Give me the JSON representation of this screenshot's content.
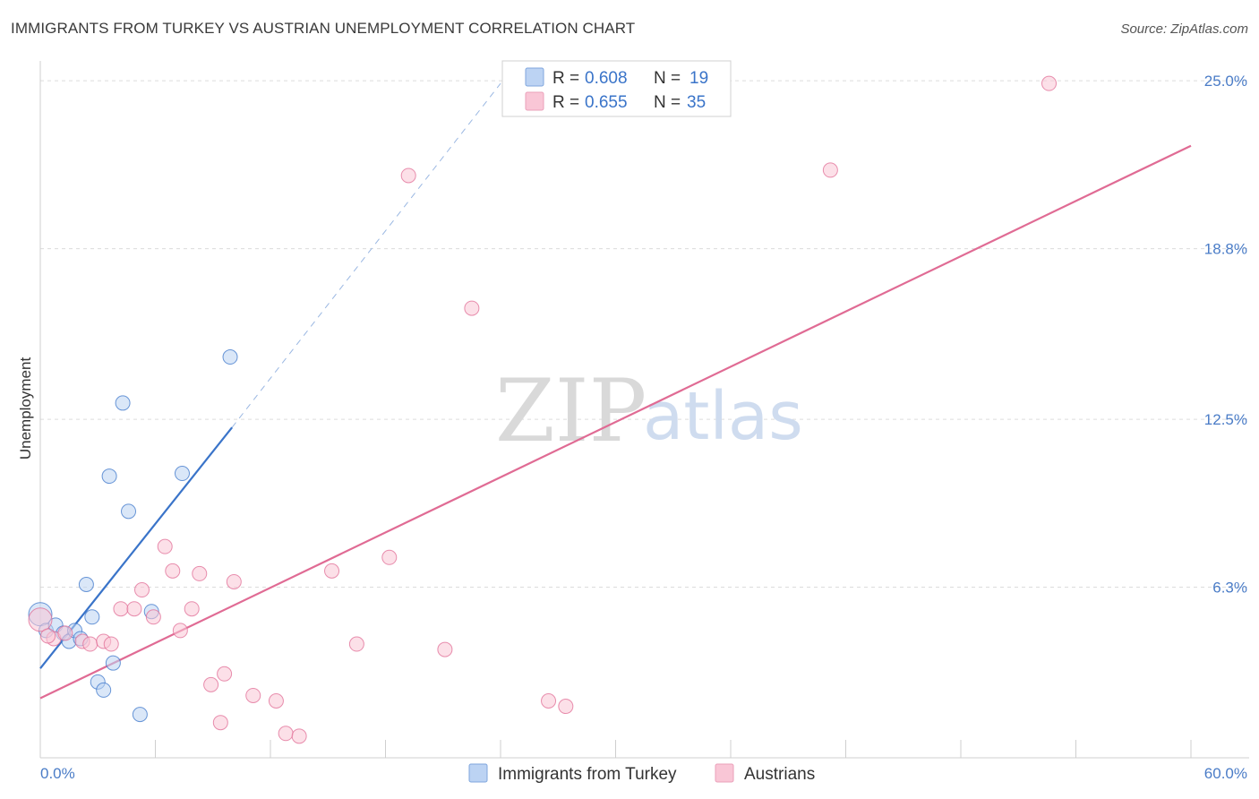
{
  "title": "IMMIGRANTS FROM TURKEY VS AUSTRIAN UNEMPLOYMENT CORRELATION CHART",
  "source": "Source: ZipAtlas.com",
  "watermark": {
    "zip": "ZIP",
    "atlas": "atlas"
  },
  "colors": {
    "blue": "#3a74c9",
    "blue_fill": "#bcd3f3",
    "pink": "#e06b94",
    "pink_fill": "#f9c6d6",
    "grid": "#dcdcdc",
    "tick_text": "#4a7cc7"
  },
  "legend": {
    "r_label": "R =",
    "n_label": "N =",
    "entries": [
      {
        "r": "0.608",
        "n": "19",
        "color": "blue"
      },
      {
        "r": "0.655",
        "n": "35",
        "color": "pink"
      }
    ]
  },
  "chart_data": {
    "type": "scatter",
    "title": "IMMIGRANTS FROM TURKEY VS AUSTRIAN UNEMPLOYMENT CORRELATION CHART",
    "xlabel": "",
    "ylabel": "Unemployment",
    "xlim": [
      0,
      60
    ],
    "ylim": [
      0,
      25.6
    ],
    "x_tick_labels": [
      "0.0%",
      "60.0%"
    ],
    "y_ticks": [
      {
        "value": 6.3,
        "label": "6.3%"
      },
      {
        "value": 12.5,
        "label": "12.5%"
      },
      {
        "value": 18.8,
        "label": "18.8%"
      },
      {
        "value": 25.0,
        "label": "25.0%"
      }
    ],
    "grid": true,
    "legend_position": "top-center",
    "series": [
      {
        "name": "Immigrants from Turkey",
        "color": "blue",
        "R": 0.608,
        "N": 19,
        "points": [
          [
            0.0,
            5.3
          ],
          [
            0.3,
            4.7
          ],
          [
            0.8,
            4.9
          ],
          [
            1.2,
            4.6
          ],
          [
            1.5,
            4.3
          ],
          [
            1.8,
            4.7
          ],
          [
            2.1,
            4.4
          ],
          [
            2.4,
            6.4
          ],
          [
            2.7,
            5.2
          ],
          [
            3.0,
            2.8
          ],
          [
            3.3,
            2.5
          ],
          [
            3.6,
            10.4
          ],
          [
            3.8,
            3.5
          ],
          [
            4.3,
            13.1
          ],
          [
            4.6,
            9.1
          ],
          [
            5.2,
            1.6
          ],
          [
            5.8,
            5.4
          ],
          [
            7.4,
            10.5
          ],
          [
            9.9,
            14.8
          ]
        ],
        "trend": {
          "x0": 0.0,
          "y0": 3.3,
          "x1": 10.0,
          "y1": 12.2
        },
        "trend_dashed": {
          "x0": 10.0,
          "y0": 12.2,
          "x1": 24.0,
          "y1": 24.9
        }
      },
      {
        "name": "Austrians",
        "color": "pink",
        "R": 0.655,
        "N": 35,
        "points": [
          [
            0.0,
            5.1
          ],
          [
            0.7,
            4.4
          ],
          [
            1.3,
            4.6
          ],
          [
            2.2,
            4.3
          ],
          [
            2.6,
            4.2
          ],
          [
            3.3,
            4.3
          ],
          [
            3.7,
            4.2
          ],
          [
            4.2,
            5.5
          ],
          [
            4.9,
            5.5
          ],
          [
            5.3,
            6.2
          ],
          [
            5.9,
            5.2
          ],
          [
            6.5,
            7.8
          ],
          [
            6.9,
            6.9
          ],
          [
            7.3,
            4.7
          ],
          [
            7.9,
            5.5
          ],
          [
            8.3,
            6.8
          ],
          [
            8.9,
            2.7
          ],
          [
            9.4,
            1.3
          ],
          [
            9.6,
            3.1
          ],
          [
            10.1,
            6.5
          ],
          [
            11.1,
            2.3
          ],
          [
            12.3,
            2.1
          ],
          [
            12.8,
            0.9
          ],
          [
            13.5,
            0.8
          ],
          [
            15.2,
            6.9
          ],
          [
            16.5,
            4.2
          ],
          [
            18.2,
            7.4
          ],
          [
            19.2,
            21.5
          ],
          [
            21.1,
            4.0
          ],
          [
            22.5,
            16.6
          ],
          [
            26.5,
            2.1
          ],
          [
            27.4,
            1.9
          ],
          [
            41.2,
            21.7
          ],
          [
            52.6,
            24.9
          ],
          [
            0.4,
            4.5
          ]
        ],
        "trend": {
          "x0": 0.0,
          "y0": 2.2,
          "x1": 60.0,
          "y1": 22.6
        }
      }
    ]
  },
  "bottom_legend": [
    "Immigrants from Turkey",
    "Austrians"
  ]
}
